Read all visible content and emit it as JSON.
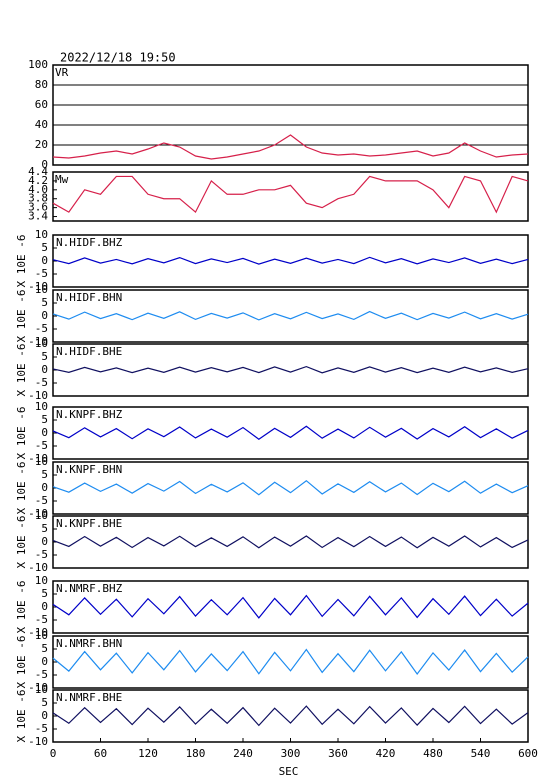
{
  "title": "2022/12/18  19:50",
  "chart_data": [
    {
      "type": "line",
      "ylabel": "VR",
      "color": "#d6204a",
      "grid": true,
      "xlim": [
        0,
        600
      ],
      "ylim": [
        0,
        100
      ],
      "yticks": [
        0,
        20,
        40,
        60,
        80,
        100
      ],
      "x": [
        0,
        20,
        40,
        60,
        80,
        100,
        120,
        140,
        160,
        180,
        200,
        220,
        240,
        260,
        280,
        300,
        320,
        340,
        360,
        380,
        400,
        420,
        440,
        460,
        480,
        500,
        520,
        540,
        560,
        580,
        600
      ],
      "values": [
        8,
        7,
        9,
        12,
        14,
        11,
        16,
        22,
        18,
        9,
        6,
        8,
        11,
        14,
        20,
        30,
        18,
        12,
        10,
        11,
        9,
        10,
        12,
        14,
        9,
        12,
        22,
        14,
        8,
        10,
        11
      ]
    },
    {
      "type": "line",
      "ylabel": "Mw",
      "color": "#d6204a",
      "grid": false,
      "xlim": [
        0,
        600
      ],
      "ylim": [
        3.3,
        4.4
      ],
      "yticks": [
        3.4,
        3.6,
        3.8,
        {
          "value": 4,
          "label": "4.0"
        },
        4.2,
        4.4
      ],
      "x": [
        0,
        20,
        40,
        60,
        80,
        100,
        120,
        140,
        160,
        180,
        200,
        220,
        240,
        260,
        280,
        300,
        320,
        340,
        360,
        380,
        400,
        420,
        440,
        460,
        480,
        500,
        520,
        540,
        560,
        580,
        600
      ],
      "values": [
        3.7,
        3.5,
        4.0,
        3.9,
        4.3,
        4.3,
        3.9,
        3.8,
        3.8,
        3.5,
        4.2,
        3.9,
        3.9,
        4.0,
        4.0,
        4.1,
        3.7,
        3.6,
        3.8,
        3.9,
        4.3,
        4.2,
        4.2,
        4.2,
        4.0,
        3.6,
        4.3,
        4.2,
        3.5,
        4.3,
        4.2
      ]
    },
    {
      "type": "wave",
      "title": "N.HIDF.BHZ",
      "ylabel": "X 10E -6",
      "color": "#0000c8",
      "xlim": [
        0,
        600
      ],
      "ylim": [
        -10,
        10
      ],
      "yticks": [
        -10,
        -5,
        0,
        5,
        10
      ],
      "x": [
        0,
        20,
        40,
        60,
        80,
        100,
        120,
        140,
        160,
        180,
        200,
        220,
        240,
        260,
        280,
        300,
        320,
        340,
        360,
        380,
        400,
        420,
        440,
        460,
        480,
        500,
        520,
        540,
        560,
        580,
        600
      ],
      "values": [
        0.5,
        -1,
        1.2,
        -0.8,
        0.6,
        -1.1,
        0.9,
        -0.7,
        1.3,
        -1,
        0.8,
        -0.6,
        1,
        -1.2,
        0.7,
        -0.9,
        1.1,
        -0.8,
        0.6,
        -1,
        1.4,
        -0.7,
        0.9,
        -1.1,
        0.8,
        -0.6,
        1.2,
        -0.9,
        0.7,
        -1,
        0.6
      ]
    },
    {
      "type": "wave",
      "title": "N.HIDF.BHN",
      "ylabel": "X 10E -6",
      "color": "#1e8cf0",
      "xlim": [
        0,
        600
      ],
      "ylim": [
        -10,
        10
      ],
      "yticks": [
        -10,
        -5,
        0,
        5,
        10
      ],
      "x": [
        0,
        20,
        40,
        60,
        80,
        100,
        120,
        140,
        160,
        180,
        200,
        220,
        240,
        260,
        280,
        300,
        320,
        340,
        360,
        380,
        400,
        420,
        440,
        460,
        480,
        500,
        520,
        540,
        560,
        580,
        600
      ],
      "values": [
        0.8,
        -1.2,
        1.5,
        -1,
        0.9,
        -1.4,
        1.1,
        -0.9,
        1.6,
        -1.3,
        1,
        -0.8,
        1.2,
        -1.5,
        0.9,
        -1.1,
        1.4,
        -1,
        0.8,
        -1.3,
        1.7,
        -0.9,
        1.1,
        -1.4,
        1,
        -0.8,
        1.5,
        -1.1,
        0.9,
        -1.2,
        0.7
      ]
    },
    {
      "type": "wave",
      "title": "N.HIDF.BHE",
      "ylabel": "X 10E -6",
      "color": "#101060",
      "xlim": [
        0,
        600
      ],
      "ylim": [
        -10,
        10
      ],
      "yticks": [
        -10,
        -5,
        0,
        5,
        10
      ],
      "x": [
        0,
        20,
        40,
        60,
        80,
        100,
        120,
        140,
        160,
        180,
        200,
        220,
        240,
        260,
        280,
        300,
        320,
        340,
        360,
        380,
        400,
        420,
        440,
        460,
        480,
        500,
        520,
        540,
        560,
        580,
        600
      ],
      "values": [
        0.4,
        -0.9,
        1,
        -0.7,
        0.8,
        -1,
        0.7,
        -0.9,
        1.1,
        -0.8,
        0.9,
        -0.7,
        1,
        -1,
        1.2,
        -0.8,
        1.3,
        -1.1,
        0.8,
        -0.9,
        1.2,
        -0.8,
        0.9,
        -1,
        0.7,
        -0.9,
        1.1,
        -0.7,
        0.8,
        -0.9,
        0.5
      ]
    },
    {
      "type": "wave",
      "title": "N.KNPF.BHZ",
      "ylabel": "X 10E -6",
      "color": "#0000c8",
      "xlim": [
        0,
        600
      ],
      "ylim": [
        -10,
        10
      ],
      "yticks": [
        -10,
        -5,
        0,
        5,
        10
      ],
      "x": [
        0,
        20,
        40,
        60,
        80,
        100,
        120,
        140,
        160,
        180,
        200,
        220,
        240,
        260,
        280,
        300,
        320,
        340,
        360,
        380,
        400,
        420,
        440,
        460,
        480,
        500,
        520,
        540,
        560,
        580,
        600
      ],
      "values": [
        0.8,
        -1.8,
        2,
        -1.5,
        1.7,
        -2.2,
        1.6,
        -1.4,
        2.3,
        -1.9,
        1.5,
        -1.6,
        2.1,
        -2.4,
        1.8,
        -1.7,
        2.6,
        -2,
        1.5,
        -1.9,
        2.2,
        -1.6,
        1.8,
        -2.3,
        1.7,
        -1.5,
        2.4,
        -1.8,
        1.6,
        -2,
        1
      ]
    },
    {
      "type": "wave",
      "title": "N.KNPF.BHN",
      "ylabel": "X 10E -6",
      "color": "#1e8cf0",
      "xlim": [
        0,
        600
      ],
      "ylim": [
        -10,
        10
      ],
      "yticks": [
        -10,
        -5,
        0,
        5,
        10
      ],
      "x": [
        0,
        20,
        40,
        60,
        80,
        100,
        120,
        140,
        160,
        180,
        200,
        220,
        240,
        260,
        280,
        300,
        320,
        340,
        360,
        380,
        400,
        420,
        440,
        460,
        480,
        500,
        520,
        540,
        560,
        580,
        600
      ],
      "values": [
        0.5,
        -1.6,
        1.9,
        -1.3,
        1.5,
        -2,
        1.7,
        -1.2,
        2.5,
        -2.1,
        1.4,
        -1.5,
        2,
        -2.6,
        2.2,
        -1.8,
        2.8,
        -2.3,
        1.6,
        -1.7,
        2.4,
        -1.5,
        1.9,
        -2.5,
        1.8,
        -1.4,
        2.6,
        -2,
        1.5,
        -1.8,
        0.9
      ]
    },
    {
      "type": "wave",
      "title": "N.KNPF.BHE",
      "ylabel": "X 10E -6",
      "color": "#101060",
      "xlim": [
        0,
        600
      ],
      "ylim": [
        -10,
        10
      ],
      "yticks": [
        -10,
        -5,
        0,
        5,
        10
      ],
      "x": [
        0,
        20,
        40,
        60,
        80,
        100,
        120,
        140,
        160,
        180,
        200,
        220,
        240,
        260,
        280,
        300,
        320,
        340,
        360,
        380,
        400,
        420,
        440,
        460,
        480,
        500,
        520,
        540,
        560,
        580,
        600
      ],
      "values": [
        0.6,
        -1.7,
        2.1,
        -1.6,
        1.8,
        -2.1,
        1.7,
        -1.5,
        2.2,
        -1.8,
        1.6,
        -1.7,
        2,
        -2.2,
        1.9,
        -1.6,
        2.3,
        -2.1,
        1.7,
        -1.8,
        2.1,
        -1.7,
        1.9,
        -2.2,
        1.8,
        -1.6,
        2.3,
        -1.9,
        1.7,
        -2.1,
        0.8
      ]
    },
    {
      "type": "wave",
      "title": "N.NMRF.BHZ",
      "ylabel": "X 10E -6",
      "color": "#0000c8",
      "xlim": [
        0,
        600
      ],
      "ylim": [
        -10,
        10
      ],
      "yticks": [
        -10,
        -5,
        0,
        5,
        10
      ],
      "x": [
        0,
        20,
        40,
        60,
        80,
        100,
        120,
        140,
        160,
        180,
        200,
        220,
        240,
        260,
        280,
        300,
        320,
        340,
        360,
        380,
        400,
        420,
        440,
        460,
        480,
        500,
        520,
        540,
        560,
        580,
        600
      ],
      "values": [
        1,
        -3,
        3.5,
        -2.8,
        3,
        -3.8,
        3.2,
        -2.6,
        4,
        -3.5,
        2.8,
        -3,
        3.6,
        -4.2,
        3.3,
        -3,
        4.4,
        -3.6,
        2.9,
        -3.4,
        4.1,
        -3,
        3.5,
        -4,
        3.2,
        -2.8,
        4.2,
        -3.3,
        3,
        -3.5,
        1.5
      ]
    },
    {
      "type": "wave",
      "title": "N.NMRF.BHN",
      "ylabel": "X 10E -6",
      "color": "#1e8cf0",
      "xlim": [
        0,
        600
      ],
      "ylim": [
        -10,
        10
      ],
      "yticks": [
        -10,
        -5,
        0,
        5,
        10
      ],
      "x": [
        0,
        20,
        40,
        60,
        80,
        100,
        120,
        140,
        160,
        180,
        200,
        220,
        240,
        260,
        280,
        300,
        320,
        340,
        360,
        380,
        400,
        420,
        440,
        460,
        480,
        500,
        520,
        540,
        560,
        580,
        600
      ],
      "values": [
        1.5,
        -3.5,
        4,
        -3,
        3.4,
        -4.2,
        3.6,
        -3,
        4.4,
        -3.8,
        3.1,
        -3.3,
        4,
        -4.5,
        3.7,
        -3.4,
        4.8,
        -4,
        3.2,
        -3.7,
        4.5,
        -3.4,
        3.9,
        -4.6,
        3.5,
        -3.1,
        4.6,
        -3.7,
        3.3,
        -3.9,
        2
      ]
    },
    {
      "type": "wave",
      "title": "N.NMRF.BHE",
      "ylabel": "X 10E -6",
      "color": "#101060",
      "xlim": [
        0,
        600
      ],
      "ylim": [
        -10,
        10
      ],
      "yticks": [
        -10,
        -5,
        0,
        5,
        10
      ],
      "x": [
        0,
        20,
        40,
        60,
        80,
        100,
        120,
        140,
        160,
        180,
        200,
        220,
        240,
        260,
        280,
        300,
        320,
        340,
        360,
        380,
        400,
        420,
        440,
        460,
        480,
        500,
        520,
        540,
        560,
        580,
        600
      ],
      "values": [
        1.2,
        -2.8,
        3.2,
        -2.5,
        2.8,
        -3.3,
        3,
        -2.4,
        3.5,
        -3.1,
        2.6,
        -2.8,
        3.2,
        -3.6,
        3,
        -2.7,
        3.8,
        -3.2,
        2.6,
        -3,
        3.6,
        -2.7,
        3.1,
        -3.5,
        2.9,
        -2.5,
        3.7,
        -2.9,
        2.6,
        -3.1,
        1.3
      ],
      "xlabel": "SEC",
      "xticks": [
        0,
        60,
        120,
        180,
        240,
        300,
        360,
        420,
        480,
        540,
        600
      ]
    }
  ]
}
